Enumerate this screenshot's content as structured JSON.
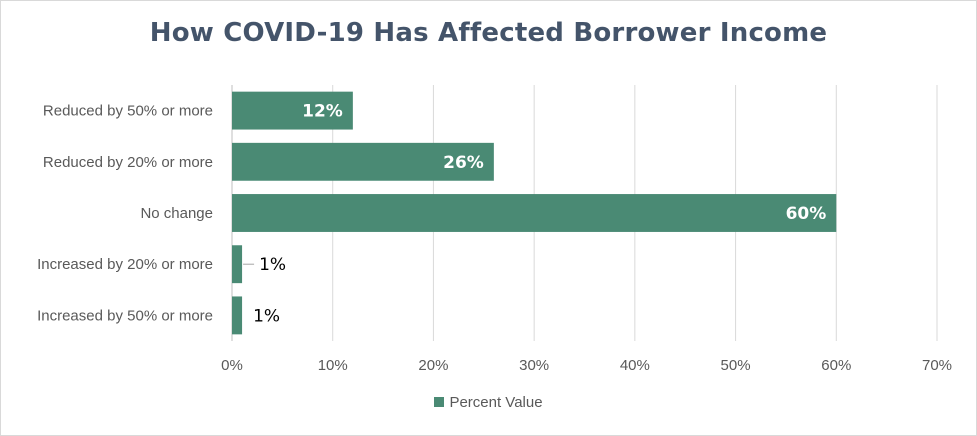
{
  "chart_data": {
    "type": "bar",
    "orientation": "horizontal",
    "title": "How COVID-19 Has Affected Borrower Income",
    "categories": [
      "Reduced by 50% or more",
      "Reduced by 20% or more",
      "No change",
      "Increased by 20% or more",
      "Increased by 50% or more"
    ],
    "series": [
      {
        "name": "Percent Value",
        "values": [
          12,
          26,
          60,
          1,
          1
        ],
        "labels": [
          "12%",
          "26%",
          "60%",
          "1%",
          "1%"
        ],
        "color": "#4a8a74"
      }
    ],
    "xlim": [
      0,
      70
    ],
    "xticks": [
      "0%",
      "10%",
      "20%",
      "30%",
      "40%",
      "50%",
      "60%",
      "70%"
    ],
    "grid": true,
    "legend_position": "bottom"
  }
}
